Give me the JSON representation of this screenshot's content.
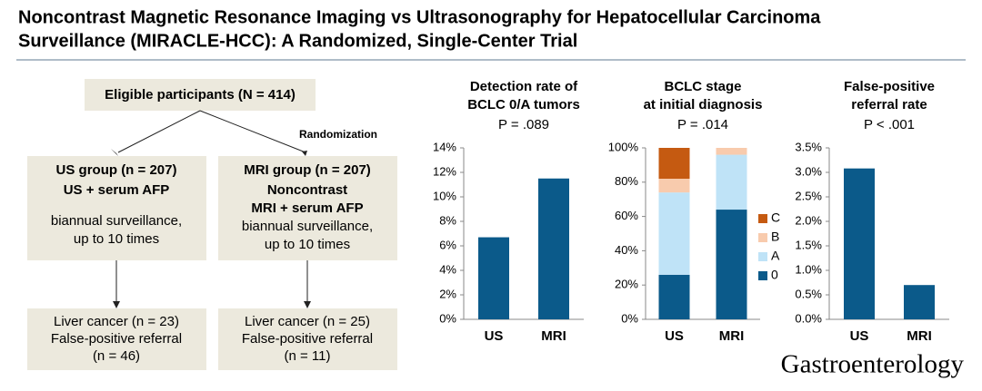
{
  "title": [
    "Noncontrast Magnetic Resonance Imaging vs Ultrasonography for Hepatocellular Carcinoma",
    "Surveillance (MIRACLE-HCC): A Randomized, Single-Center Trial"
  ],
  "flowchart": {
    "eligible": "Eligible participants (N = 414)",
    "randomization": "Randomization",
    "us_group": [
      "US group (n = 207)",
      "US + serum AFP",
      "biannual surveillance,",
      "up to 10 times"
    ],
    "mri_group": [
      "MRI group (n = 207)",
      "Noncontrast",
      "MRI + serum AFP",
      "biannual surveillance,",
      "up to 10 times"
    ],
    "us_outcome": [
      "Liver cancer (n = 23)",
      "False-positive referral",
      "(n = 46)"
    ],
    "mri_outcome": [
      "Liver cancer (n = 25)",
      "False-positive referral",
      "(n = 11)"
    ]
  },
  "logo": "Gastroenterology",
  "chart_data": [
    {
      "type": "bar",
      "title": [
        "Detection rate of",
        "BCLC 0/A tumors"
      ],
      "subtitle": "P = .089",
      "categories": [
        "US",
        "MRI"
      ],
      "values": [
        6.7,
        11.5
      ],
      "color": "#0b5a8a",
      "ylim": [
        0,
        14
      ],
      "yticks": [
        {
          "value": 0,
          "label": "0%"
        },
        {
          "value": 2,
          "label": "2%"
        },
        {
          "value": 4,
          "label": "4%"
        },
        {
          "value": 6,
          "label": "6%"
        },
        {
          "value": 8,
          "label": "8%"
        },
        {
          "value": 10,
          "label": "10%"
        },
        {
          "value": 12,
          "label": "12%"
        },
        {
          "value": 14,
          "label": "14%"
        }
      ]
    },
    {
      "type": "stacked_bar",
      "title": [
        "BCLC stage",
        "at initial diagnosis"
      ],
      "subtitle": "P = .014",
      "categories": [
        "US",
        "MRI"
      ],
      "series": [
        {
          "name": "0",
          "color": "#0b5a8a",
          "values": [
            26,
            64
          ]
        },
        {
          "name": "A",
          "color": "#bfe3f7",
          "values": [
            48,
            32
          ]
        },
        {
          "name": "B",
          "color": "#f8cbad",
          "values": [
            8,
            4
          ]
        },
        {
          "name": "C",
          "color": "#c55a11",
          "values": [
            18,
            0
          ]
        }
      ],
      "ylim": [
        0,
        100
      ],
      "yticks": [
        {
          "value": 0,
          "label": "0%"
        },
        {
          "value": 20,
          "label": "20%"
        },
        {
          "value": 40,
          "label": "40%"
        },
        {
          "value": 60,
          "label": "60%"
        },
        {
          "value": 80,
          "label": "80%"
        },
        {
          "value": 100,
          "label": "100%"
        }
      ]
    },
    {
      "type": "bar",
      "title": [
        "False-positive",
        "referral rate"
      ],
      "subtitle": "P < .001",
      "categories": [
        "US",
        "MRI"
      ],
      "values": [
        3.08,
        0.7
      ],
      "color": "#0b5a8a",
      "ylim": [
        0,
        3.5
      ],
      "yticks": [
        {
          "value": 0,
          "label": "0.0%"
        },
        {
          "value": 0.5,
          "label": "0.5%"
        },
        {
          "value": 1,
          "label": "1.0%"
        },
        {
          "value": 1.5,
          "label": "1.5%"
        },
        {
          "value": 2,
          "label": "2.0%"
        },
        {
          "value": 2.5,
          "label": "2.5%"
        },
        {
          "value": 3,
          "label": "3.0%"
        },
        {
          "value": 3.5,
          "label": "3.5%"
        }
      ]
    }
  ]
}
